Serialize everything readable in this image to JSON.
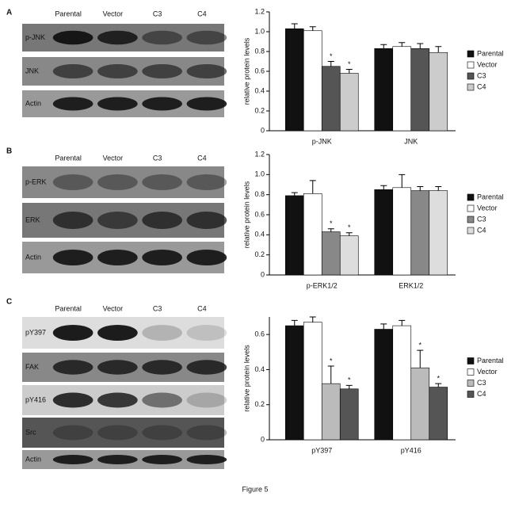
{
  "chart_data": [
    {
      "type": "bar",
      "y_label": "relative protein levels",
      "categories": [
        "p-JNK",
        "JNK"
      ],
      "ylim": [
        0,
        1.2
      ],
      "yticks": [
        0,
        0.2,
        0.4,
        0.6,
        0.8,
        {
          "value": 1,
          "label": "1.0"
        },
        1.2
      ],
      "legend": "right",
      "series": [
        {
          "name": "Parental",
          "color": "#111111",
          "values": [
            1.03,
            0.83
          ],
          "errors": [
            0.05,
            0.04
          ],
          "significance": [
            null,
            null
          ]
        },
        {
          "name": "Vector",
          "color": "#ffffff",
          "values": [
            1.01,
            0.85
          ],
          "errors": [
            0.04,
            0.04
          ],
          "significance": [
            null,
            null
          ]
        },
        {
          "name": "C3",
          "color": "#555555",
          "values": [
            0.65,
            0.83
          ],
          "errors": [
            0.05,
            0.05
          ],
          "significance": [
            "*",
            null
          ]
        },
        {
          "name": "C4",
          "color": "#cccccc",
          "values": [
            0.58,
            0.79
          ],
          "errors": [
            0.04,
            0.06
          ],
          "significance": [
            "*",
            null
          ]
        }
      ]
    },
    {
      "type": "bar",
      "y_label": "relative protein levels",
      "categories": [
        "p-ERK1/2",
        "ERK1/2"
      ],
      "ylim": [
        0,
        1.2
      ],
      "yticks": [
        0,
        0.2,
        0.4,
        0.6,
        0.8,
        {
          "value": 1,
          "label": "1.0"
        },
        1.2
      ],
      "legend": "right",
      "series": [
        {
          "name": "Parental",
          "color": "#111111",
          "values": [
            0.79,
            0.85
          ],
          "errors": [
            0.03,
            0.04
          ],
          "significance": [
            null,
            null
          ]
        },
        {
          "name": "Vector",
          "color": "#ffffff",
          "values": [
            0.81,
            0.87
          ],
          "errors": [
            0.13,
            0.13
          ],
          "significance": [
            null,
            null
          ]
        },
        {
          "name": "C3",
          "color": "#888888",
          "values": [
            0.43,
            0.84
          ],
          "errors": [
            0.03,
            0.04
          ],
          "significance": [
            "*",
            null
          ]
        },
        {
          "name": "C4",
          "color": "#dddddd",
          "values": [
            0.39,
            0.84
          ],
          "errors": [
            0.03,
            0.04
          ],
          "significance": [
            "*",
            null
          ]
        }
      ]
    },
    {
      "type": "bar",
      "y_label": "relative protein levels",
      "categories": [
        "pY397",
        "pY416"
      ],
      "ylim": [
        0,
        0.7
      ],
      "yticks": [
        0,
        0.2,
        0.4,
        0.6
      ],
      "legend": "right",
      "series": [
        {
          "name": "Parental",
          "color": "#111111",
          "values": [
            0.65,
            0.63
          ],
          "errors": [
            0.03,
            0.03
          ],
          "significance": [
            null,
            null
          ]
        },
        {
          "name": "Vector",
          "color": "#ffffff",
          "values": [
            0.67,
            0.65
          ],
          "errors": [
            0.03,
            0.03
          ],
          "significance": [
            null,
            null
          ]
        },
        {
          "name": "C3",
          "color": "#bbbbbb",
          "values": [
            0.32,
            0.41
          ],
          "errors": [
            0.1,
            0.1
          ],
          "significance": [
            "*",
            "*"
          ]
        },
        {
          "name": "C4",
          "color": "#555555",
          "values": [
            0.29,
            0.3
          ],
          "errors": [
            0.02,
            0.02
          ],
          "significance": [
            "*",
            "*"
          ]
        }
      ]
    }
  ],
  "blots": [
    {
      "panel": "A",
      "lanes": [
        "Parental",
        "Vector",
        "C3",
        "C4"
      ],
      "rows": [
        "p-JNK",
        "JNK",
        "Actin"
      ]
    },
    {
      "panel": "B",
      "lanes": [
        "Parental",
        "Vector",
        "C3",
        "C4"
      ],
      "rows": [
        "p-ERK",
        "ERK",
        "Actin"
      ]
    },
    {
      "panel": "C",
      "lanes": [
        "Parental",
        "Vector",
        "C3",
        "C4"
      ],
      "rows": [
        "pY397",
        "FAK",
        "pY416",
        "Src",
        "Actin"
      ]
    }
  ],
  "caption": "Figure 5"
}
